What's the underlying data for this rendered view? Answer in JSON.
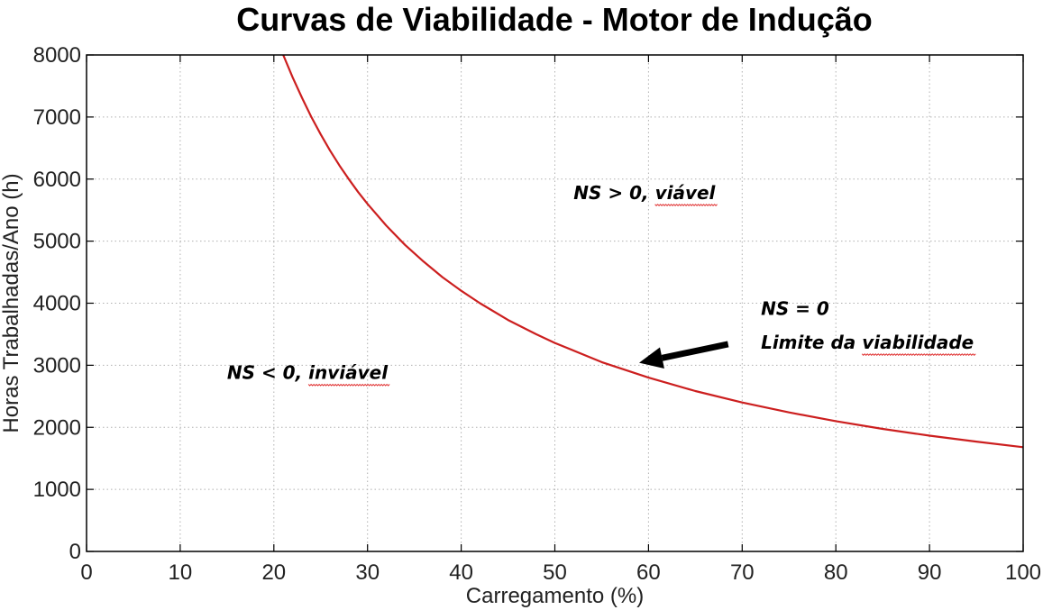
{
  "chart_data": {
    "type": "line",
    "title": "Curvas de Viabilidade - Motor de Indução",
    "xlabel": "Carregamento (%)",
    "ylabel": "Horas Trabalhadas/Ano (h)",
    "xlim": [
      0,
      100
    ],
    "ylim": [
      0,
      8000
    ],
    "xticks": [
      0,
      10,
      20,
      30,
      40,
      50,
      60,
      70,
      80,
      90,
      100
    ],
    "yticks": [
      0,
      1000,
      2000,
      3000,
      4000,
      5000,
      6000,
      7000,
      8000
    ],
    "grid": true,
    "series": [
      {
        "color": "#cc1f1f",
        "x": [
          21,
          22,
          23,
          24,
          25,
          26,
          27,
          28,
          29,
          30,
          32,
          34,
          36,
          38,
          40,
          42,
          45,
          48,
          50,
          55,
          60,
          65,
          70,
          75,
          80,
          85,
          90,
          95,
          100
        ],
        "y": [
          8000,
          7640,
          7310,
          7000,
          6720,
          6460,
          6220,
          6000,
          5790,
          5600,
          5250,
          4940,
          4670,
          4420,
          4200,
          4000,
          3730,
          3500,
          3360,
          3050,
          2800,
          2585,
          2400,
          2240,
          2100,
          1975,
          1865,
          1770,
          1680
        ]
      }
    ],
    "annotations": [
      {
        "text": "NS > 0, viável",
        "x": 52,
        "y": 5680,
        "underline": "viável"
      },
      {
        "text": "NS = 0",
        "x": 72,
        "y": 3810
      },
      {
        "text": "Limite da viabilidade",
        "x": 72,
        "y": 3270,
        "underline": "viabilidade"
      },
      {
        "text": "NS < 0, inviável",
        "x": 15,
        "y": 2780,
        "underline": "inviável"
      }
    ],
    "arrow": {
      "from": [
        68.5,
        3340
      ],
      "to": [
        59,
        3040
      ]
    }
  }
}
